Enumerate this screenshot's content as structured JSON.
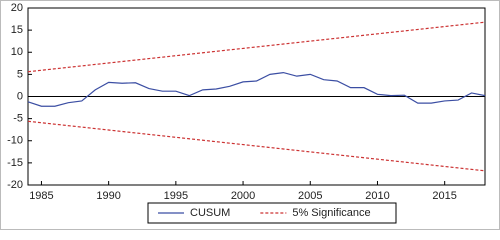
{
  "chart_data": {
    "type": "line",
    "x": [
      1984,
      1985,
      1986,
      1987,
      1988,
      1989,
      1990,
      1991,
      1992,
      1993,
      1994,
      1995,
      1996,
      1997,
      1998,
      1999,
      2000,
      2001,
      2002,
      2003,
      2004,
      2005,
      2006,
      2007,
      2008,
      2009,
      2010,
      2011,
      2012,
      2013,
      2014,
      2015,
      2016,
      2017,
      2018
    ],
    "series": [
      {
        "name": "CUSUM",
        "color": "#3b4ea3",
        "dash": false,
        "values": [
          -1.2,
          -2.2,
          -2.2,
          -1.4,
          -1.0,
          1.5,
          3.2,
          3.0,
          3.1,
          1.8,
          1.2,
          1.2,
          0.2,
          1.5,
          1.7,
          2.3,
          3.3,
          3.5,
          5.0,
          5.4,
          4.6,
          5.0,
          3.8,
          3.5,
          2.0,
          2.0,
          0.5,
          0.2,
          0.3,
          -1.5,
          -1.5,
          -1.0,
          -0.8,
          0.8,
          0.2
        ]
      },
      {
        "name": "5% Significance",
        "color": "#cc3333",
        "dash": true,
        "x": [
          1984,
          2018
        ],
        "values": [
          5.6,
          16.8
        ]
      },
      {
        "color": "#cc3333",
        "dash": true,
        "x": [
          1984,
          2018
        ],
        "values": [
          -5.6,
          -16.8
        ]
      }
    ],
    "reference_line": 0,
    "xlim": [
      1984,
      2018
    ],
    "xticks": [
      1985,
      1990,
      1995,
      2000,
      2005,
      2010,
      2015
    ],
    "ylim": [
      -20,
      20
    ],
    "yticks": [
      -20,
      -15,
      -10,
      -5,
      0,
      5,
      10,
      15,
      20
    ]
  }
}
